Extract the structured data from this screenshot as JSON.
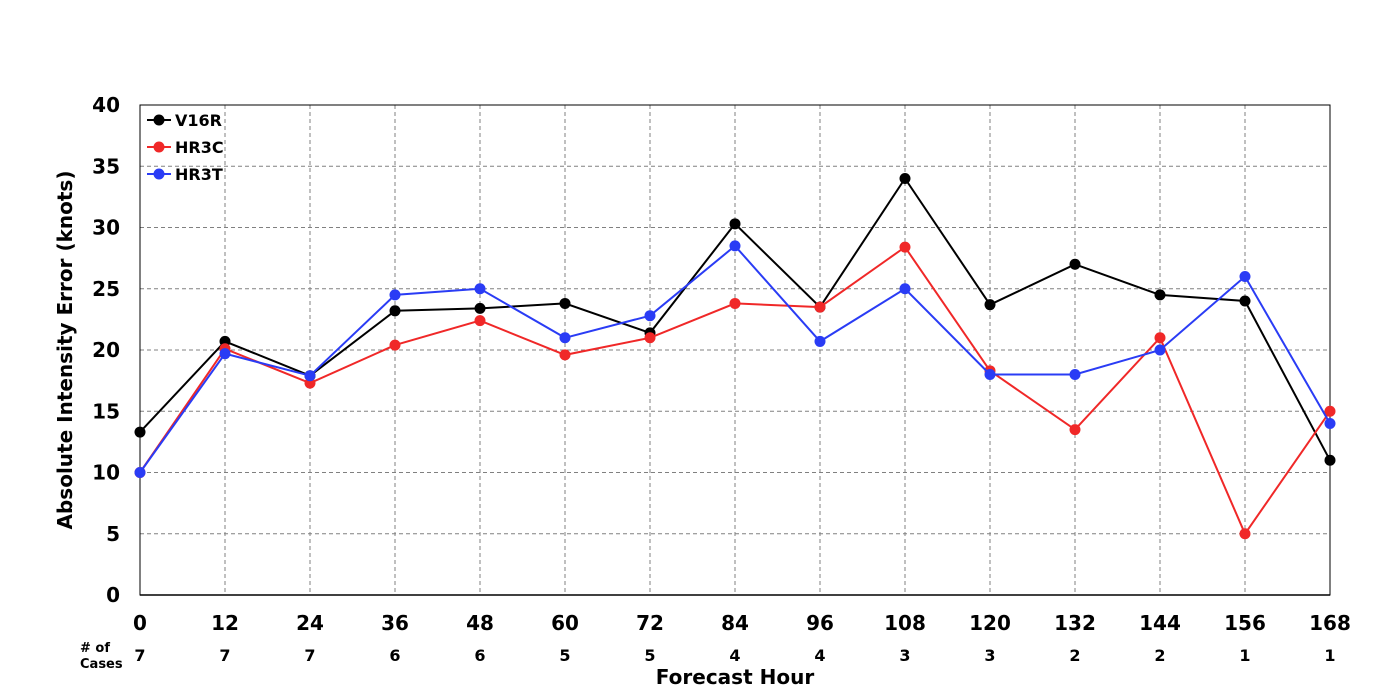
{
  "chart_data": {
    "type": "line",
    "ylabel": "Absolute Intensity Error (knots)",
    "xlabel": "Forecast Hour",
    "ylim": [
      0,
      40
    ],
    "yticks": [
      "0",
      "5",
      "10",
      "15",
      "20",
      "25",
      "30",
      "35",
      "40"
    ],
    "x": [
      0,
      12,
      24,
      36,
      48,
      60,
      72,
      84,
      96,
      108,
      120,
      132,
      144,
      156,
      168
    ],
    "xticks": [
      "0",
      "12",
      "24",
      "36",
      "48",
      "60",
      "72",
      "84",
      "96",
      "108",
      "120",
      "132",
      "144",
      "156",
      "168"
    ],
    "grid": true,
    "legend_position": "top-left",
    "cases_label_line1": "# of",
    "cases_label_line2": "Cases",
    "cases": [
      "7",
      "7",
      "7",
      "6",
      "6",
      "5",
      "5",
      "4",
      "4",
      "3",
      "3",
      "2",
      "2",
      "1",
      "1"
    ],
    "series": [
      {
        "name": "V16R",
        "color": "#000000",
        "values": [
          13.3,
          20.7,
          17.9,
          23.2,
          23.4,
          23.8,
          21.4,
          30.3,
          23.5,
          34.0,
          23.7,
          27.0,
          24.5,
          24.0,
          11.0
        ]
      },
      {
        "name": "HR3C",
        "color": "#f02828",
        "values": [
          10.0,
          20.1,
          17.3,
          20.4,
          22.4,
          19.6,
          21.0,
          23.8,
          23.5,
          28.4,
          18.3,
          13.5,
          21.0,
          5.0,
          15.0
        ]
      },
      {
        "name": "HR3T",
        "color": "#2a3cf5",
        "values": [
          10.0,
          19.7,
          17.9,
          24.5,
          25.0,
          21.0,
          22.8,
          28.5,
          20.7,
          25.0,
          18.0,
          18.0,
          20.0,
          26.0,
          14.0
        ]
      }
    ]
  }
}
